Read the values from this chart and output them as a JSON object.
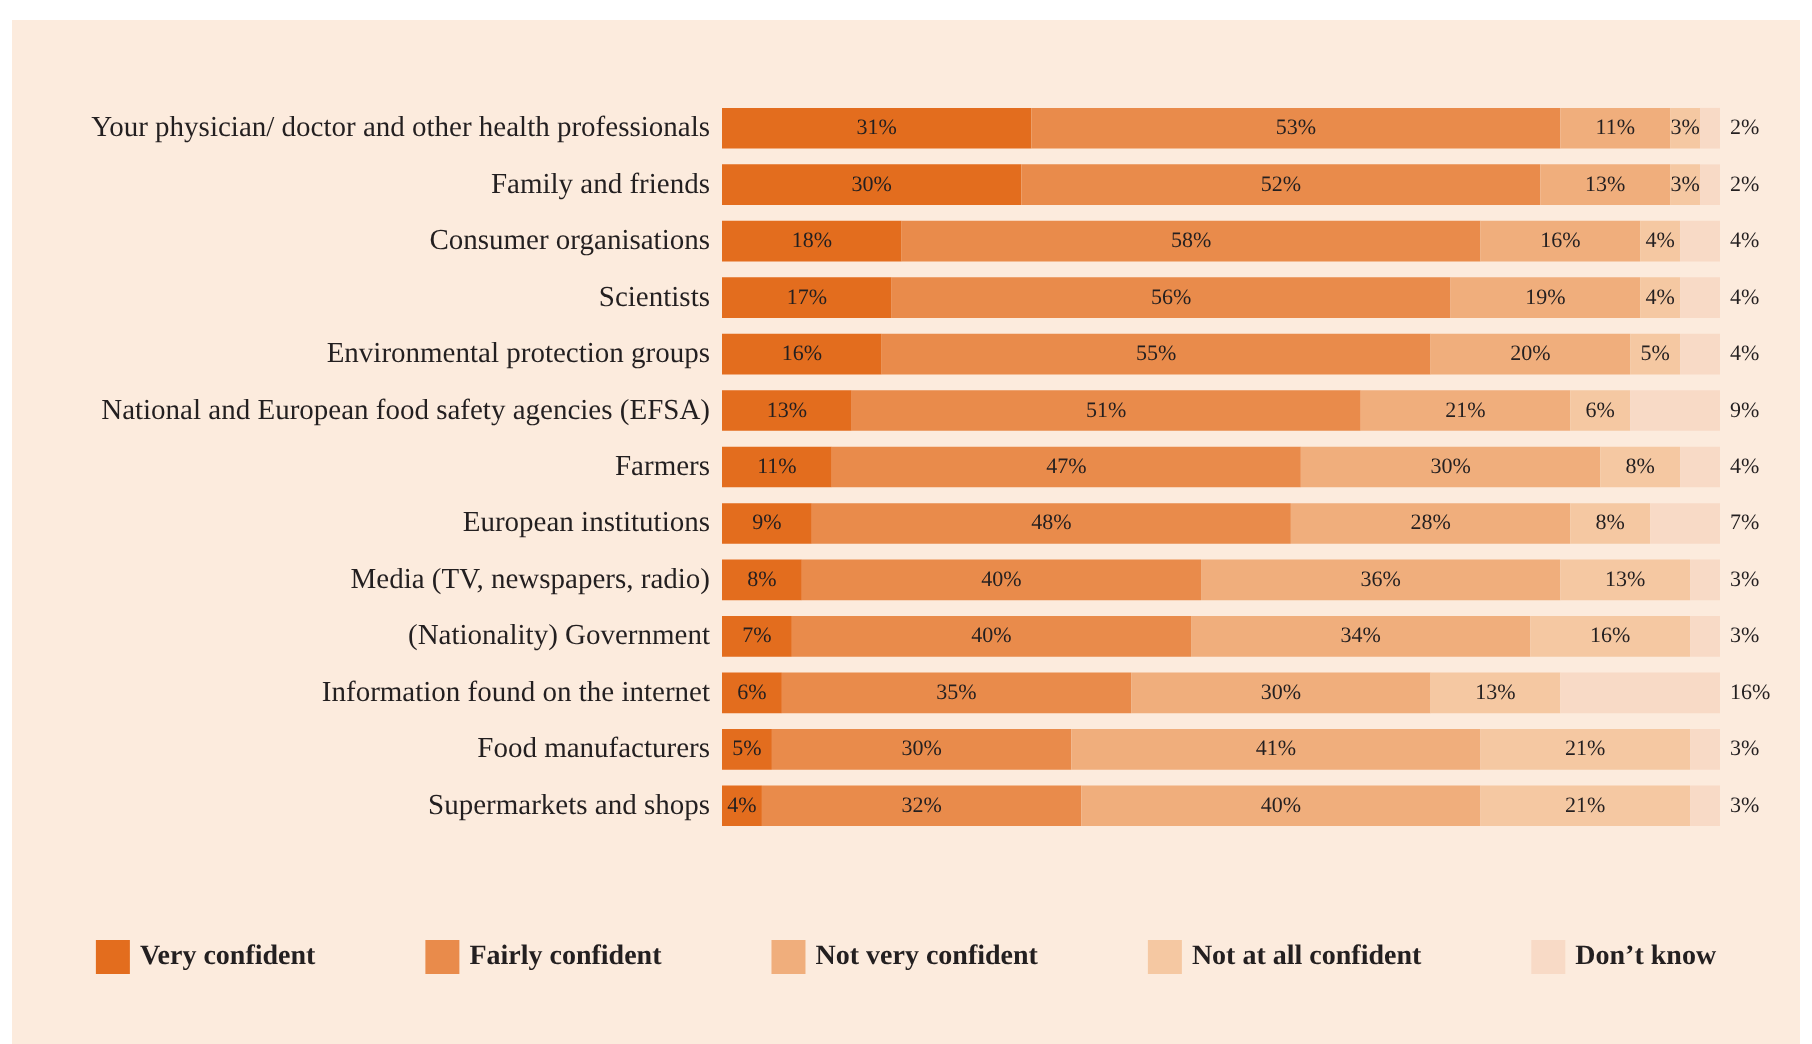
{
  "chart_data": {
    "type": "bar",
    "orientation": "horizontal",
    "stacked": true,
    "legend": "bottom",
    "categories": [
      "Your physician/ doctor and other health professionals",
      "Family and friends",
      "Consumer organisations",
      "Scientists",
      "Environmental protection groups",
      "National and European food safety agencies (EFSA)",
      "Farmers",
      "European institutions",
      "Media (TV, newspapers, radio)",
      "(Nationality) Government",
      "Information found on the internet",
      "Food manufacturers",
      "Supermarkets and shops"
    ],
    "series": [
      {
        "name": "Very confident",
        "color": "#e36d1e",
        "values": [
          31,
          30,
          18,
          17,
          16,
          13,
          11,
          9,
          8,
          7,
          6,
          5,
          4
        ],
        "value_labels": [
          "31%",
          "30%",
          "18%",
          "17%",
          "16%",
          "13%",
          "11%",
          "9%",
          "8%",
          "7%",
          "6%",
          "5%",
          "4%"
        ]
      },
      {
        "name": "Fairly confident",
        "color": "#e98b4b",
        "values": [
          53,
          52,
          58,
          56,
          55,
          51,
          47,
          48,
          40,
          40,
          35,
          30,
          32
        ],
        "value_labels": [
          "53%",
          "52%",
          "58%",
          "56%",
          "55%",
          "51%",
          "47%",
          "48%",
          "40%",
          "40%",
          "35%",
          "30%",
          "32%"
        ]
      },
      {
        "name": "Not very confident",
        "color": "#f0ae7c",
        "values": [
          11,
          13,
          16,
          19,
          20,
          21,
          30,
          28,
          36,
          34,
          30,
          41,
          40
        ],
        "value_labels": [
          "11%",
          "13%",
          "16%",
          "19%",
          "20%",
          "21%",
          "30%",
          "28%",
          "36%",
          "34%",
          "30%",
          "41%",
          "40%"
        ]
      },
      {
        "name": "Not at all confident",
        "color": "#f5c8a2",
        "values": [
          3,
          3,
          4,
          4,
          5,
          6,
          8,
          8,
          13,
          16,
          13,
          21,
          21
        ],
        "value_labels": [
          "3%",
          "3%",
          "4%",
          "4%",
          "5%",
          "6%",
          "8%",
          "8%",
          "13%",
          "16%",
          "13%",
          "21%",
          "21%"
        ]
      },
      {
        "name": "Don’t know",
        "color": "#f8dac6",
        "values": [
          2,
          2,
          4,
          4,
          4,
          9,
          4,
          7,
          3,
          3,
          16,
          3,
          3
        ],
        "value_labels": [
          "2%",
          "2%",
          "4%",
          "4%",
          "4%",
          "9%",
          "4%",
          "7%",
          "3%",
          "3%",
          "16%",
          "3%",
          "3%"
        ]
      }
    ]
  }
}
